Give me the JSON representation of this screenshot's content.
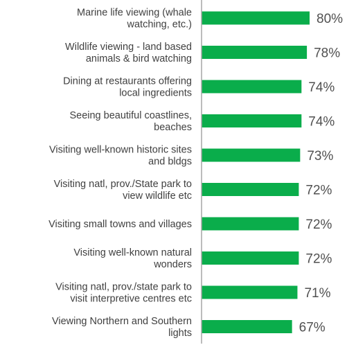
{
  "chart_data": {
    "type": "bar",
    "orientation": "horizontal",
    "title": "",
    "xlabel": "",
    "ylabel": "",
    "xlim": [
      0,
      100
    ],
    "grid": false,
    "bar_color": "#0aad4b",
    "axis_color": "#a6a6a6",
    "categories": [
      [
        "Marine life viewing (whale",
        "watching, etc.)"
      ],
      [
        "Wildlife viewing - land based",
        "animals & bird watching"
      ],
      [
        "Dining at restaurants offering",
        "local ingredients"
      ],
      [
        "Seeing beautiful coastlines,",
        "beaches"
      ],
      [
        "Visiting well-known historic sites",
        "and bldgs"
      ],
      [
        "Visiting natl, prov./State park to",
        "view wildlife etc"
      ],
      [
        "Visiting small towns and villages"
      ],
      [
        "Visiting well-known natural",
        "wonders"
      ],
      [
        "Visiting natl, prov./state park to",
        "visit interpretive centres etc"
      ],
      [
        "Viewing Northern and Southern",
        "lights"
      ]
    ],
    "values": [
      80,
      78,
      74,
      74,
      73,
      72,
      72,
      72,
      71,
      67
    ],
    "value_labels": [
      "80%",
      "78%",
      "74%",
      "74%",
      "73%",
      "72%",
      "72%",
      "72%",
      "71%",
      "67%"
    ]
  }
}
